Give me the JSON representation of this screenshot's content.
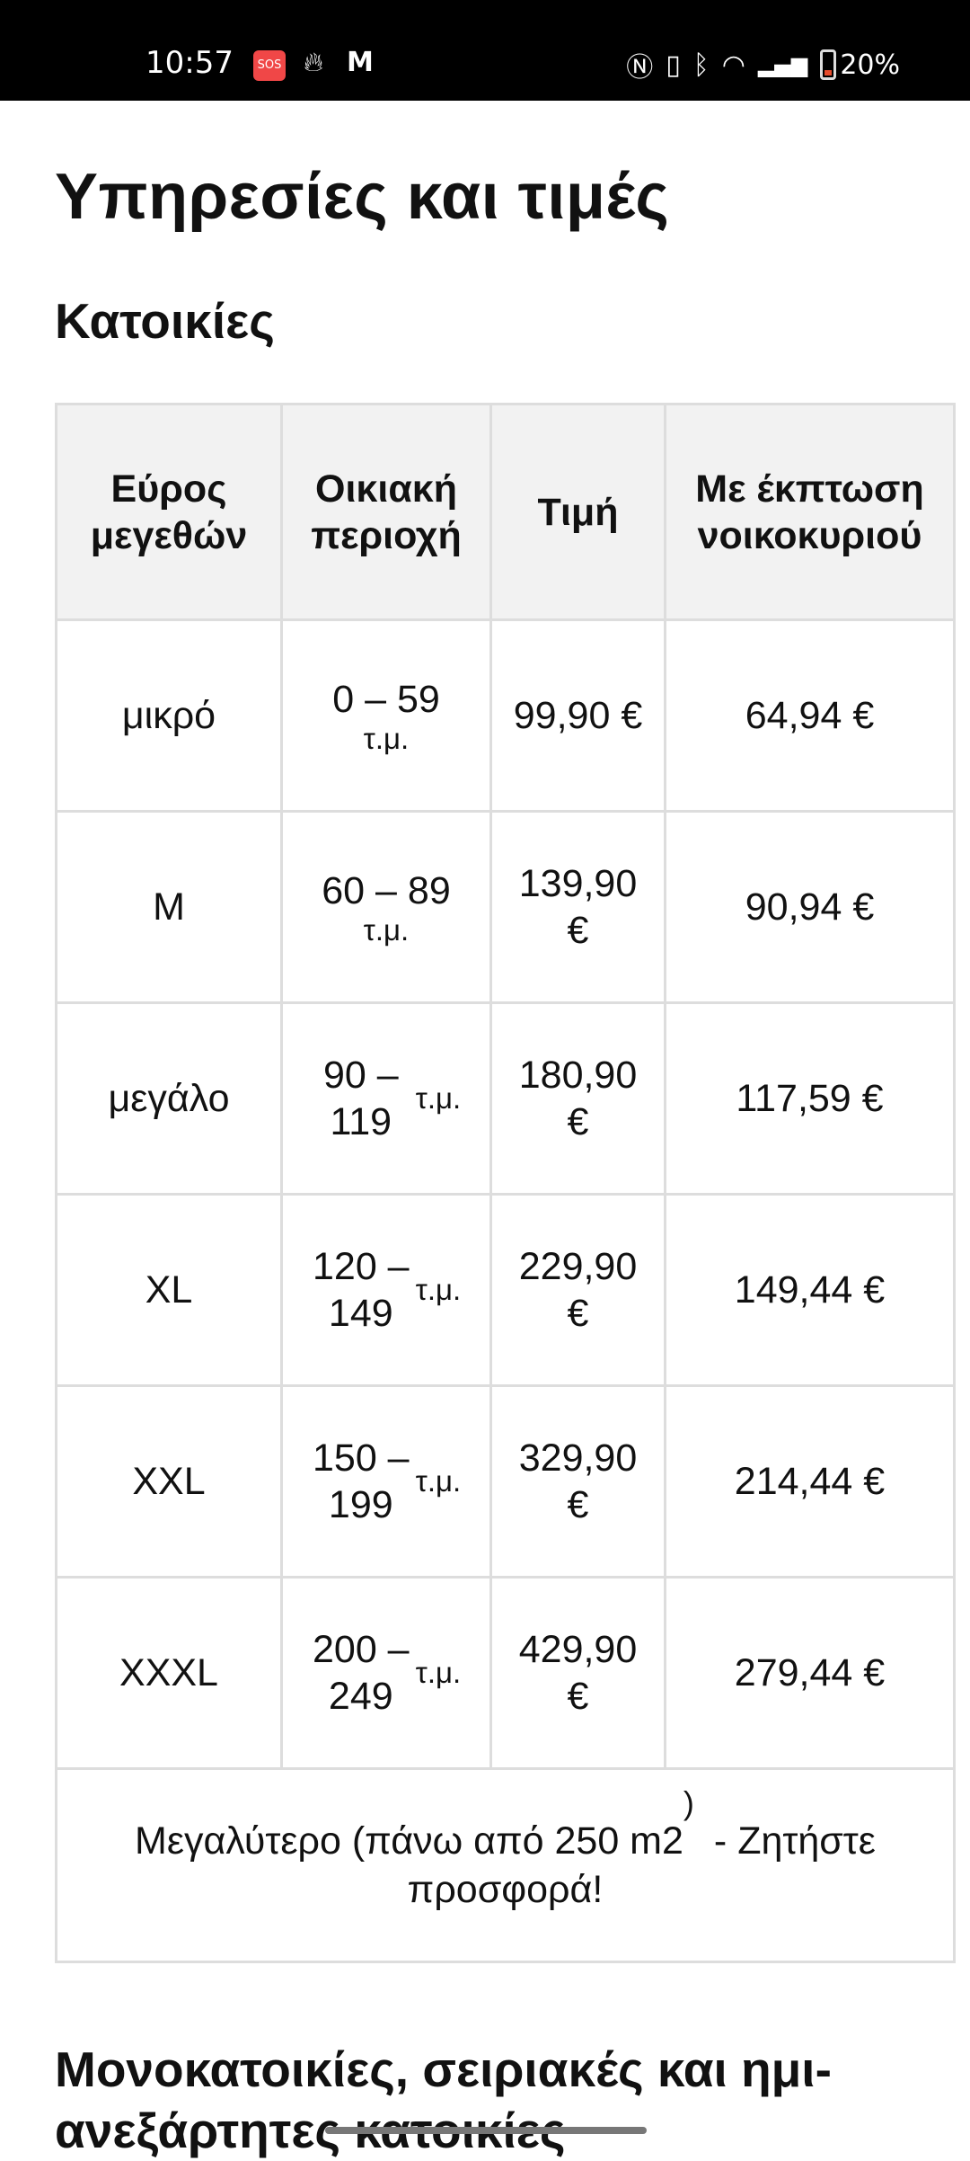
{
  "status_bar": {
    "time": "10:57",
    "sos": "SOS",
    "battery": "20%",
    "icons": [
      "sos-icon",
      "flame-icon",
      "gmail-icon",
      "nfc-icon",
      "vibrate-icon",
      "bluetooth-icon",
      "wifi-icon",
      "signal-icon",
      "battery-icon"
    ]
  },
  "page": {
    "title": "Υπηρεσίες και τιμές",
    "section1": "Κατοικίες",
    "section2": "Μονοκατοικίες, σειριακές και ημι-ανεξάρτητες κατοικίες"
  },
  "table": {
    "headers": [
      "Εύρος μεγεθών",
      "Οικιακή περιοχή",
      "Τιμή",
      "Με έκπτωση νοικοκυριού"
    ],
    "rows": [
      {
        "size": "μικρό",
        "range": "0 – 59",
        "unit": "τ.μ.",
        "price": "99,90 €",
        "discount": "64,94 €"
      },
      {
        "size": "M",
        "range": "60 – 89",
        "unit": "τ.μ.",
        "price": "139,90 €",
        "discount": "90,94 €"
      },
      {
        "size": "μεγάλο",
        "range": "90 – 119",
        "unit": "τ.μ.",
        "price": "180,90 €",
        "discount": "117,59 €"
      },
      {
        "size": "XL",
        "range": "120 – 149",
        "unit": "τ.μ.",
        "price": "229,90 €",
        "discount": "149,44 €"
      },
      {
        "size": "XXL",
        "range": "150 – 199",
        "unit": "τ.μ.",
        "price": "329,90 €",
        "discount": "214,44 €"
      },
      {
        "size": "XXXL",
        "range": "200 – 249",
        "unit": "τ.μ.",
        "price": "429,90 €",
        "discount": "279,44 €"
      }
    ],
    "footer_a": "Μεγαλύτερο (πάνω από 250 m2",
    "footer_paren": ")",
    "footer_b": "- Ζητήστε προσφορά!"
  }
}
